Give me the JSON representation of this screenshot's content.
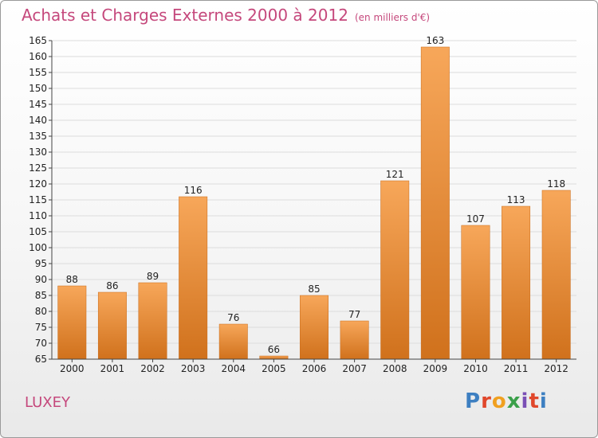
{
  "header": {
    "title": "Achats et Charges Externes 2000 à 2012",
    "subtitle": "(en milliers d'€)"
  },
  "commune": "LUXEY",
  "logo": {
    "text": "Proxiti",
    "colors": [
      "#3d7fc1",
      "#e0472b",
      "#f0a020",
      "#3aa04a",
      "#7a4fb5",
      "#e0472b",
      "#3d7fc1"
    ]
  },
  "colors": {
    "bar_top": "#f7a75a",
    "bar_bottom": "#d0711c",
    "title": "#c5487c"
  },
  "chart_data": {
    "type": "bar",
    "title": "Achats et Charges Externes 2000 à 2012",
    "categories": [
      "2000",
      "2001",
      "2002",
      "2003",
      "2004",
      "2005",
      "2006",
      "2007",
      "2008",
      "2009",
      "2010",
      "2011",
      "2012"
    ],
    "values": [
      88,
      86,
      89,
      116,
      76,
      66,
      85,
      77,
      121,
      163,
      107,
      113,
      118
    ],
    "data_labels": [
      "88",
      "86",
      "89",
      "116",
      "76",
      "66",
      "85",
      "77",
      "121",
      "163",
      "107",
      "113",
      "118"
    ],
    "ylim": [
      65,
      165
    ],
    "yticks": [
      65,
      70,
      75,
      80,
      85,
      90,
      95,
      100,
      105,
      110,
      115,
      120,
      125,
      130,
      135,
      140,
      145,
      150,
      155,
      160,
      165
    ],
    "grid": true,
    "xlabel": "",
    "ylabel": ""
  }
}
